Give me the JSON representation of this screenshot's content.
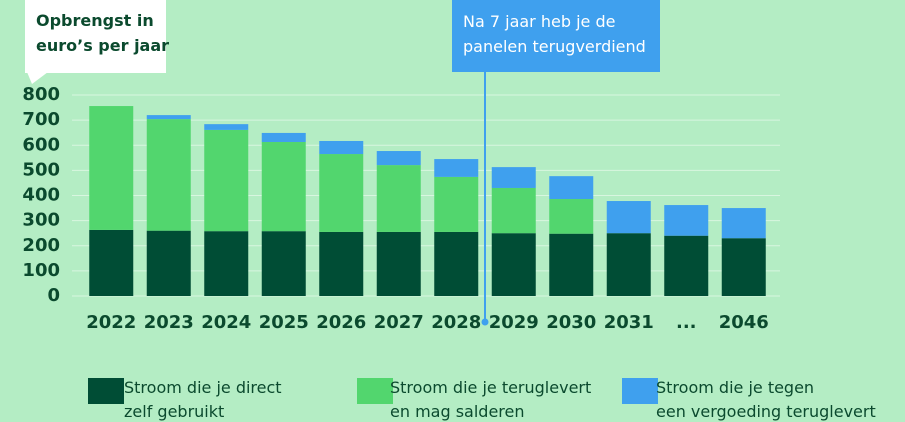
{
  "chart_data": {
    "type": "stacked-bar",
    "title": "Opbrengst in\neuro’s per jaar",
    "annotation": "Na 7 jaar heb je de\npanelen terugverdiend",
    "categories": [
      "2022",
      "2023",
      "2024",
      "2025",
      "2026",
      "2027",
      "2028",
      "2029",
      "2030",
      "2031",
      "...",
      "2046"
    ],
    "series": [
      {
        "name": "Stroom die je direct\nzelf gebruikt",
        "color": "#004d35",
        "values": [
          263,
          260,
          258,
          258,
          255,
          255,
          255,
          250,
          248,
          250,
          240,
          230
        ]
      },
      {
        "name": "Stroom die je teruglevert\nen mag salderen",
        "color": "#52d66e",
        "values": [
          493,
          444,
          403,
          355,
          310,
          266,
          219,
          180,
          138,
          0,
          0,
          0
        ]
      },
      {
        "name": "Stroom die je tegen\neen vergoeding teruglevert",
        "color": "#3fa0ee",
        "values": [
          0,
          16,
          23,
          36,
          52,
          56,
          71,
          83,
          91,
          128,
          122,
          120
        ]
      }
    ],
    "ylim": [
      0,
      800
    ],
    "yticks": [
      0,
      100,
      200,
      300,
      400,
      500,
      600,
      700,
      800
    ],
    "grid": true
  }
}
